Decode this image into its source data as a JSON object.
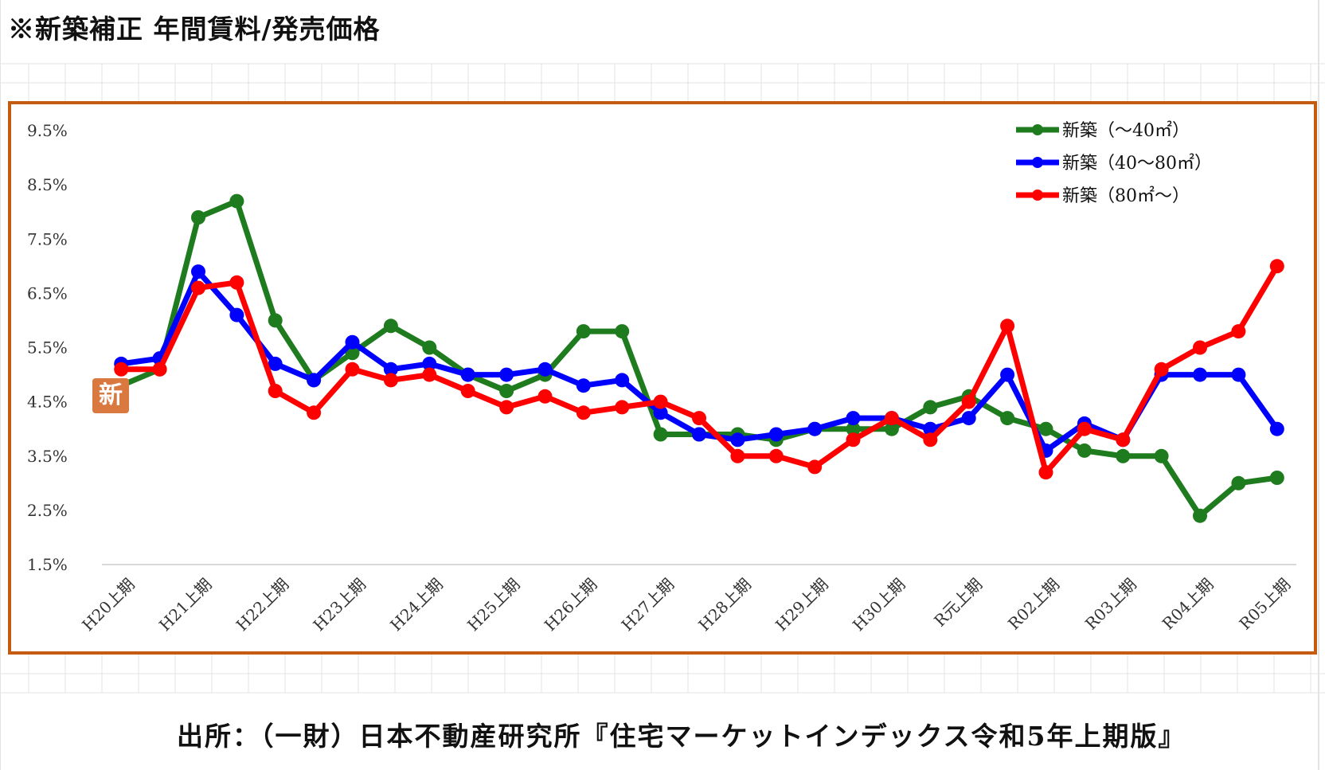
{
  "title": "※新築補正 年間賃料/発売価格",
  "source": "出所：（一財）日本不動産研究所『住宅マーケットインデックス令和5年上期版』",
  "stamp_text": "新",
  "colors": {
    "frame": "#c55a11",
    "grid": "#d9d9d9",
    "sheet_grid": "#e3e3e3"
  },
  "chart_data": {
    "type": "line",
    "title": "",
    "xlabel": "",
    "ylabel": "",
    "ylim": [
      1.5,
      9.5
    ],
    "yticks": [
      "9.5%",
      "8.5%",
      "7.5%",
      "6.5%",
      "5.5%",
      "4.5%",
      "3.5%",
      "2.5%",
      "1.5%"
    ],
    "yticks_values": [
      9.5,
      8.5,
      7.5,
      6.5,
      5.5,
      4.5,
      3.5,
      2.5,
      1.5
    ],
    "x_tick_labels": [
      "H20上期",
      "H21上期",
      "H22上期",
      "H23上期",
      "H24上期",
      "H25上期",
      "H26上期",
      "H27上期",
      "H28上期",
      "H29上期",
      "H30上期",
      "R元上期",
      "R02上期",
      "R03上期",
      "R04上期",
      "R05上期"
    ],
    "x_tick_every": 2,
    "point_count": 31,
    "legend_position": "top-right",
    "grid": "horizontal baseline only",
    "series": [
      {
        "name": "新築（～40㎡）",
        "color": "#1e7b1e",
        "values": [
          4.8,
          5.1,
          7.9,
          8.2,
          6.0,
          4.9,
          5.4,
          5.9,
          5.5,
          5.0,
          4.7,
          5.0,
          5.8,
          5.8,
          3.9,
          3.9,
          3.9,
          3.8,
          4.0,
          4.0,
          4.0,
          4.4,
          4.6,
          4.2,
          4.0,
          3.6,
          3.5,
          3.5,
          2.4,
          3.0,
          3.1
        ]
      },
      {
        "name": "新築（40～80㎡）",
        "color": "#0000ff",
        "values": [
          5.2,
          5.3,
          6.9,
          6.1,
          5.2,
          4.9,
          5.6,
          5.1,
          5.2,
          5.0,
          5.0,
          5.1,
          4.8,
          4.9,
          4.3,
          3.9,
          3.8,
          3.9,
          4.0,
          4.2,
          4.2,
          4.0,
          4.2,
          5.0,
          3.6,
          4.1,
          3.8,
          5.0,
          5.0,
          5.0,
          4.0
        ]
      },
      {
        "name": "新築（80㎡～）",
        "color": "#ff0000",
        "values": [
          5.1,
          5.1,
          6.6,
          6.7,
          4.7,
          4.3,
          5.1,
          4.9,
          5.0,
          4.7,
          4.4,
          4.6,
          4.3,
          4.4,
          4.5,
          4.2,
          3.5,
          3.5,
          3.3,
          3.8,
          4.2,
          3.8,
          4.5,
          5.9,
          3.2,
          4.0,
          3.8,
          5.1,
          5.5,
          5.8,
          7.0
        ]
      }
    ]
  }
}
